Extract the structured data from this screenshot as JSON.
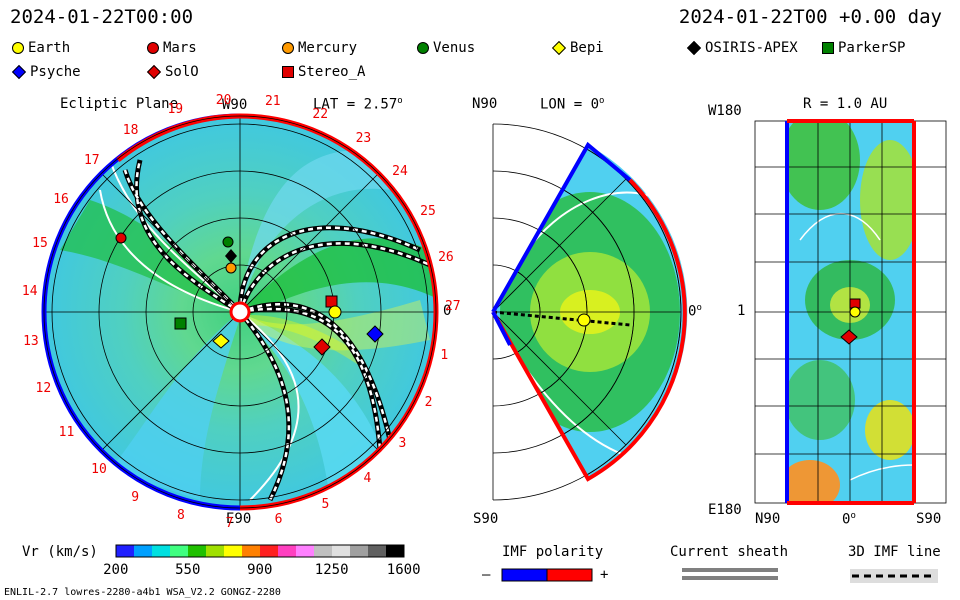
{
  "header": {
    "left_time": "2024-01-22T00:00",
    "right_time": "2024-01-22T00 +0.00 day"
  },
  "legend": [
    {
      "name": "Earth",
      "shape": "circle",
      "color": "#ffff00"
    },
    {
      "name": "Mars",
      "shape": "circle",
      "color": "#e00000"
    },
    {
      "name": "Mercury",
      "shape": "circle",
      "color": "#ff9a00"
    },
    {
      "name": "Venus",
      "shape": "circle",
      "color": "#008000"
    },
    {
      "name": "Bepi",
      "shape": "diamond",
      "color": "#ffff00"
    },
    {
      "name": "OSIRIS-APEX",
      "shape": "diamond",
      "color": "#000000"
    },
    {
      "name": "ParkerSP",
      "shape": "square",
      "color": "#008000"
    },
    {
      "name": "Psyche",
      "shape": "diamond",
      "color": "#0000ff"
    },
    {
      "name": "SolO",
      "shape": "diamond",
      "color": "#e00000"
    },
    {
      "name": "Stereo_A",
      "shape": "square",
      "color": "#e00000"
    }
  ],
  "ecliptic": {
    "title": "Ecliptic Plane",
    "lat_label": "LAT = 2.57",
    "deg_sup": "o",
    "top_label": "W90",
    "bottom_label": "E90",
    "right_label": "0",
    "carrington_numbers": [
      "1",
      "2",
      "3",
      "4",
      "5",
      "6",
      "7",
      "8",
      "9",
      "10",
      "11",
      "12",
      "13",
      "14",
      "15",
      "16",
      "17",
      "18",
      "19",
      "20",
      "21",
      "22",
      "23",
      "24",
      "25",
      "26",
      "27"
    ]
  },
  "meridional": {
    "title": "LON = 0",
    "deg_sup": "o",
    "top_label": "N90",
    "bottom_label": "S90",
    "right_label": "0"
  },
  "radial": {
    "title": "R = 1.0 AU",
    "top_left": "W180",
    "bottom_left": "E180",
    "mid_left": "1",
    "x_labels": [
      "N90",
      "0",
      "S90"
    ],
    "deg_sup": "o"
  },
  "colorbar": {
    "label": "Vr (km/s)",
    "ticks": [
      "200",
      "550",
      "900",
      "1250",
      "1600"
    ],
    "colors": [
      "#2020ff",
      "#00a0ff",
      "#00e0e0",
      "#40ff80",
      "#20c000",
      "#a0e000",
      "#ffff00",
      "#ff8000",
      "#ff2020",
      "#ff40c0",
      "#ff80ff",
      "#c0c0c0",
      "#e0e0e0",
      "#a0a0a0",
      "#606060",
      "#000000"
    ]
  },
  "footer_legend": {
    "imf_title": "IMF polarity",
    "imf_minus": "–",
    "imf_plus": "+",
    "sheath_title": "Current sheath",
    "imf3d_title": "3D IMF line"
  },
  "footer": {
    "left_text": "ENLIL-2.7 lowres-2280-a4b1 WSA_V2.2 GONGZ-2280"
  }
}
